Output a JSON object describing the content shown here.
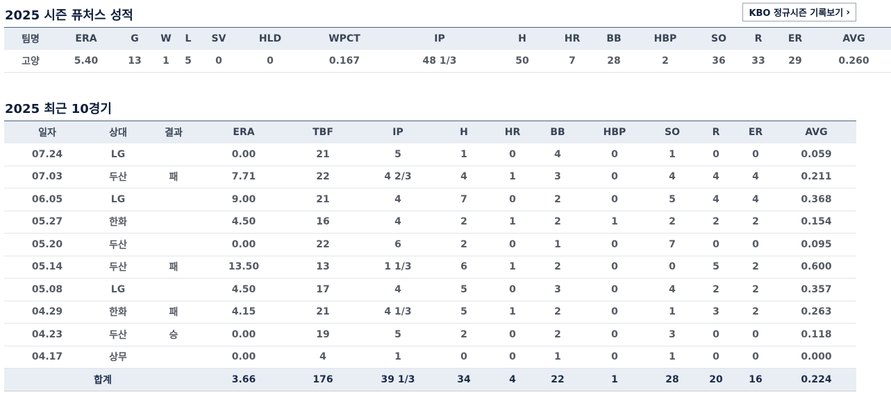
{
  "season": {
    "title": "2025 시즌 퓨처스 성적",
    "kbo_button_label": "KBO 정규시즌 기록보기",
    "chevron_glyph": "›",
    "columns": [
      "팀명",
      "ERA",
      "G",
      "W",
      "L",
      "SV",
      "HLD",
      "WPCT",
      "IP",
      "H",
      "HR",
      "BB",
      "HBP",
      "SO",
      "R",
      "ER",
      "AVG"
    ],
    "row": [
      "고양",
      "5.40",
      "13",
      "1",
      "5",
      "0",
      "0",
      "0.167",
      "48 1/3",
      "50",
      "7",
      "28",
      "2",
      "36",
      "33",
      "29",
      "0.260"
    ]
  },
  "recent": {
    "title": "2025 최근 10경기",
    "columns": [
      "일자",
      "상대",
      "결과",
      "ERA",
      "TBF",
      "IP",
      "H",
      "HR",
      "BB",
      "HBP",
      "SO",
      "R",
      "ER",
      "AVG"
    ],
    "rows": [
      [
        "07.24",
        "LG",
        "",
        "0.00",
        "21",
        "5",
        "1",
        "0",
        "4",
        "0",
        "1",
        "0",
        "0",
        "0.059"
      ],
      [
        "07.03",
        "두산",
        "패",
        "7.71",
        "22",
        "4 2/3",
        "4",
        "1",
        "3",
        "0",
        "4",
        "4",
        "4",
        "0.211"
      ],
      [
        "06.05",
        "LG",
        "",
        "9.00",
        "21",
        "4",
        "7",
        "0",
        "2",
        "0",
        "5",
        "4",
        "4",
        "0.368"
      ],
      [
        "05.27",
        "한화",
        "",
        "4.50",
        "16",
        "4",
        "2",
        "1",
        "2",
        "1",
        "2",
        "2",
        "2",
        "0.154"
      ],
      [
        "05.20",
        "두산",
        "",
        "0.00",
        "22",
        "6",
        "2",
        "0",
        "1",
        "0",
        "7",
        "0",
        "0",
        "0.095"
      ],
      [
        "05.14",
        "두산",
        "패",
        "13.50",
        "13",
        "1 1/3",
        "6",
        "1",
        "2",
        "0",
        "0",
        "5",
        "2",
        "0.600"
      ],
      [
        "05.08",
        "LG",
        "",
        "4.50",
        "17",
        "4",
        "5",
        "0",
        "3",
        "0",
        "4",
        "2",
        "2",
        "0.357"
      ],
      [
        "04.29",
        "한화",
        "패",
        "4.15",
        "21",
        "4 1/3",
        "5",
        "1",
        "2",
        "0",
        "1",
        "3",
        "2",
        "0.263"
      ],
      [
        "04.23",
        "두산",
        "승",
        "0.00",
        "19",
        "5",
        "2",
        "0",
        "2",
        "0",
        "3",
        "0",
        "0",
        "0.118"
      ],
      [
        "04.17",
        "상무",
        "",
        "0.00",
        "4",
        "1",
        "0",
        "0",
        "1",
        "0",
        "1",
        "0",
        "0",
        "0.000"
      ]
    ],
    "total": {
      "label": "합계",
      "values": [
        "3.66",
        "176",
        "39 1/3",
        "34",
        "4",
        "22",
        "1",
        "28",
        "20",
        "16",
        "0.224"
      ]
    }
  },
  "colors": {
    "title": "#0d1d3a",
    "header_bg": "#e9eef4",
    "header_border": "#4b5d78",
    "cell_text": "#555a63",
    "row_border": "#e2e5ea"
  }
}
